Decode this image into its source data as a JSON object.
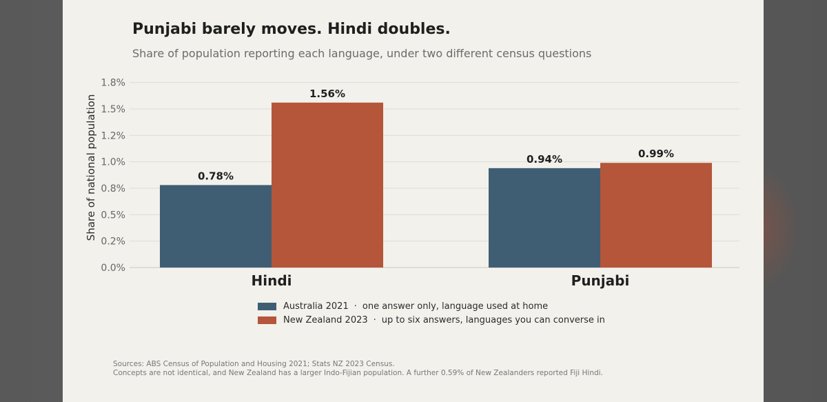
{
  "title": "Punjabi barely moves. Hindi doubles.",
  "subtitle": "Share of population reporting each language, under two different census questions",
  "chart_data": {
    "type": "bar",
    "categories": [
      "Hindi",
      "Punjabi"
    ],
    "series": [
      {
        "name": "Australia 2021",
        "description": "one answer only, language used at home",
        "values": [
          0.78,
          0.94
        ],
        "color": "#3f5e73"
      },
      {
        "name": "New Zealand 2023",
        "description": "up to six answers, languages you can converse in",
        "values": [
          1.56,
          0.99
        ],
        "color": "#b5553a"
      }
    ],
    "data_labels": [
      [
        "0.78%",
        "0.94%"
      ],
      [
        "1.56%",
        "0.99%"
      ]
    ],
    "ylabel": "Share of national population",
    "ylim": [
      0,
      1.8
    ],
    "yticks": [
      {
        "value": 0.0,
        "label": "0.0%"
      },
      {
        "value": 0.25,
        "label": "0.2%"
      },
      {
        "value": 0.5,
        "label": "0.5%"
      },
      {
        "value": 0.75,
        "label": "0.8%"
      },
      {
        "value": 1.0,
        "label": "1.0%"
      },
      {
        "value": 1.25,
        "label": "1.2%"
      },
      {
        "value": 1.5,
        "label": "1.5%"
      },
      {
        "value": 1.75,
        "label": "1.8%"
      }
    ],
    "grid": true,
    "legend_position": "bottom-center"
  },
  "legend": {
    "separator": "·"
  },
  "source": {
    "line1": "Sources: ABS Census of Population and Housing 2021; Stats NZ 2023 Census.",
    "line2": "Concepts are not identical, and New Zealand has a larger Indo-Fijian population. A further 0.59% of New Zealanders reported Fiji Hindi."
  }
}
